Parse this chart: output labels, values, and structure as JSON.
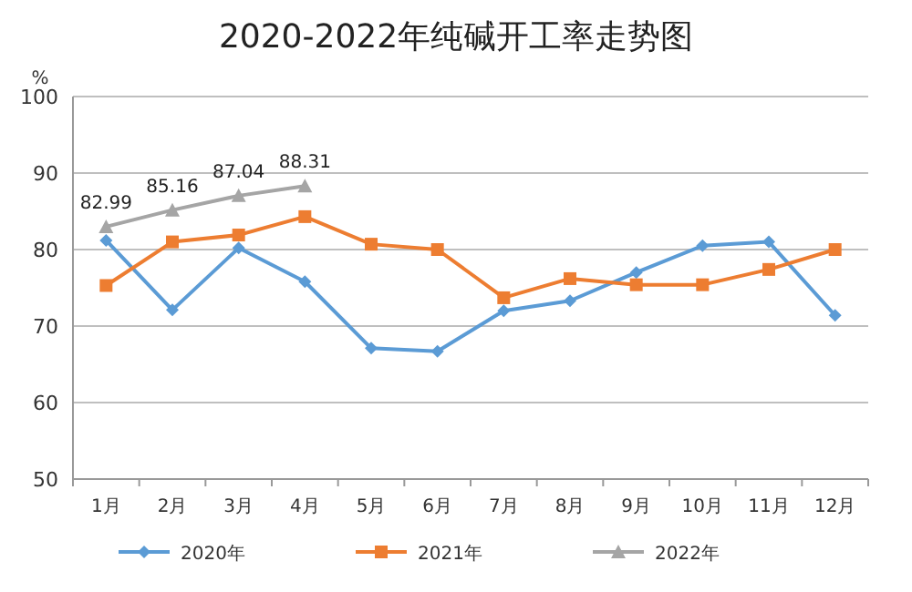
{
  "chart_data": {
    "type": "line",
    "title": "2020-2022年纯碱开工率走势图",
    "ylabel": "%",
    "categories": [
      "1月",
      "2月",
      "3月",
      "4月",
      "5月",
      "6月",
      "7月",
      "8月",
      "9月",
      "10月",
      "11月",
      "12月"
    ],
    "series": [
      {
        "name": "2020年",
        "color": "#5b9bd5",
        "marker": "diamond",
        "values": [
          81.2,
          72.1,
          80.2,
          75.8,
          67.1,
          66.7,
          72.0,
          73.3,
          77.0,
          80.5,
          81.0,
          71.4
        ]
      },
      {
        "name": "2021年",
        "color": "#ed7d31",
        "marker": "square",
        "values": [
          75.3,
          81.0,
          81.9,
          84.3,
          80.7,
          80.0,
          73.7,
          76.2,
          75.4,
          75.4,
          77.4,
          80.0
        ]
      },
      {
        "name": "2022年",
        "color": "#a5a5a5",
        "marker": "triangle",
        "values": [
          82.99,
          85.16,
          87.04,
          88.31,
          null,
          null,
          null,
          null,
          null,
          null,
          null,
          null
        ],
        "value_labels": [
          "82.99",
          "85.16",
          "87.04",
          "88.31",
          null,
          null,
          null,
          null,
          null,
          null,
          null,
          null
        ]
      }
    ],
    "ylim": [
      50,
      100
    ],
    "yticks": [
      50,
      60,
      70,
      80,
      90,
      100
    ],
    "grid": "y",
    "legend": "bottom"
  }
}
